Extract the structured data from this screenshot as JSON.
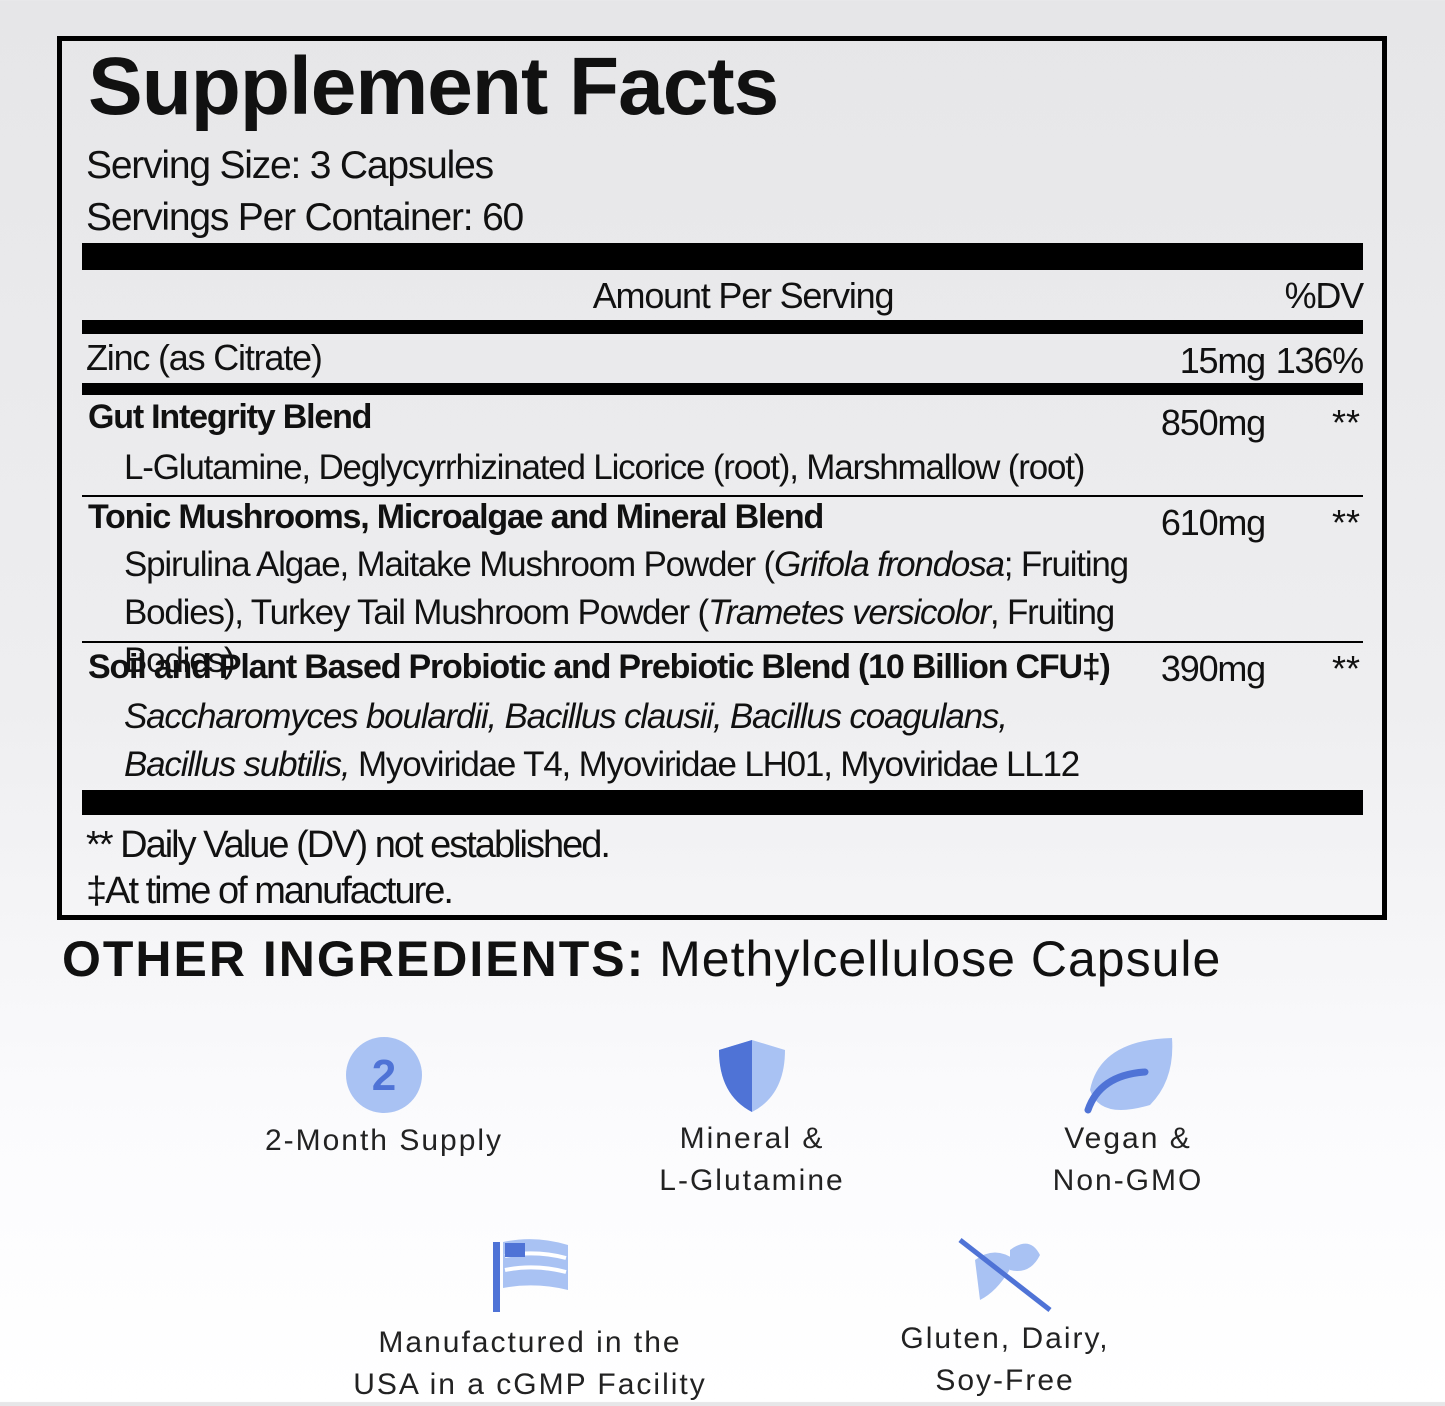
{
  "title": "Supplement Facts",
  "serving_size": "Serving Size: 3 Capsules",
  "servings_per_container": "Servings Per Container: 60",
  "header": {
    "amount": "Amount Per Serving",
    "dv": "%DV"
  },
  "zinc": {
    "name": "Zinc (as Citrate)",
    "amount": "15mg",
    "dv": "136%"
  },
  "blends": [
    {
      "name": "Gut Integrity Blend",
      "amount": "850mg",
      "dv": "**",
      "ingredients": [
        "L-Glutamine, Deglycyrrhizinated Licorice (root), Marshmallow (root)"
      ]
    },
    {
      "name": "Tonic Mushrooms, Microalgae and Mineral Blend",
      "amount": "610mg",
      "dv": "**",
      "ingredients": [
        "Spirulina Algae, Maitake Mushroom Powder (",
        "Grifola frondosa",
        "; Fruiting Bodies), Turkey Tail Mushroom Powder (",
        "Trametes versicolor",
        ", Fruiting Bodies)"
      ]
    },
    {
      "name": "Soil and Plant Based Probiotic and Prebiotic Blend (10 Billion CFU‡)",
      "amount": "390mg",
      "dv": "**",
      "ingredients": [
        "Saccharomyces boulardii, Bacillus clausii, Bacillus coagulans, Bacillus subtilis,",
        " Myoviridae T4, Myoviridae LH01, Myoviridae LL12"
      ]
    }
  ],
  "footnotes": [
    "** Daily Value (DV) not established.",
    "‡At time of manufacture."
  ],
  "other_ingredients": {
    "label": "OTHER INGREDIENTS:",
    "value": "Methylcellulose Capsule"
  },
  "badges": [
    {
      "icon_text": "2",
      "lines": [
        "2-Month Supply"
      ]
    },
    {
      "lines": [
        "Mineral &",
        "L-Glutamine"
      ]
    },
    {
      "lines": [
        "Vegan &",
        "Non-GMO"
      ]
    },
    {
      "lines": [
        "Manufactured in the",
        "USA in a cGMP Facility"
      ]
    },
    {
      "lines": [
        "Gluten, Dairy,",
        "Soy-Free"
      ]
    }
  ]
}
